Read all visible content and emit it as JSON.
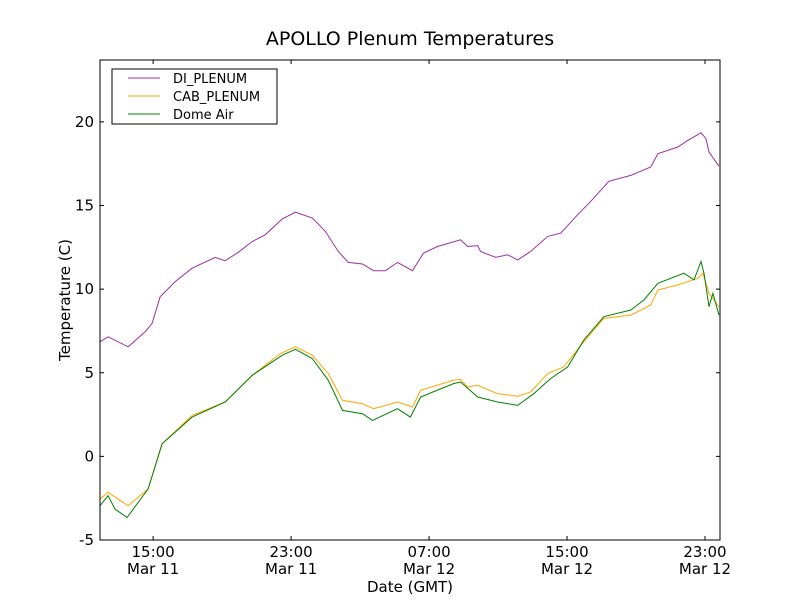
{
  "chart_data": {
    "type": "line",
    "title": "APOLLO Plenum Temperatures",
    "xlabel": "Date (GMT)",
    "ylabel": "Temperature (C)",
    "x_units": "hours since Mar 11 00:00 GMT",
    "xlim": [
      11.92,
      47.87
    ],
    "ylim": [
      -5,
      23.7
    ],
    "grid": false,
    "legend_position": "top-left",
    "x_ticks": [
      {
        "value": 15,
        "label_time": "15:00",
        "label_date": "Mar 11"
      },
      {
        "value": 23,
        "label_time": "23:00",
        "label_date": "Mar 11"
      },
      {
        "value": 31,
        "label_time": "07:00",
        "label_date": "Mar 12"
      },
      {
        "value": 39,
        "label_time": "15:00",
        "label_date": "Mar 12"
      },
      {
        "value": 47,
        "label_time": "23:00",
        "label_date": "Mar 12"
      }
    ],
    "y_ticks": [
      {
        "value": -5,
        "label": "-5"
      },
      {
        "value": 0,
        "label": "0"
      },
      {
        "value": 5,
        "label": "5"
      },
      {
        "value": 10,
        "label": "10"
      },
      {
        "value": 15,
        "label": "15"
      },
      {
        "value": 20,
        "label": "20"
      }
    ],
    "series": [
      {
        "name": "DI_PLENUM",
        "color": "#9b309b",
        "x": [
          11.92,
          12.39,
          13.55,
          14.54,
          14.94,
          15.41,
          16.28,
          17.26,
          18.6,
          19.18,
          19.94,
          20.75,
          21.5,
          22.49,
          23.25,
          24.23,
          24.99,
          25.74,
          26.32,
          27.14,
          27.78,
          28.47,
          29.17,
          30.04,
          30.68,
          31.49,
          32.83,
          33.23,
          33.82,
          33.99,
          34.86,
          35.56,
          36.14,
          36.89,
          37.88,
          38.64,
          39.62,
          40.38,
          41.42,
          42.7,
          43.86,
          44.27,
          45.43,
          46.01,
          46.77,
          47.06,
          47.23,
          47.81
        ],
        "y": [
          6.85,
          7.15,
          6.55,
          7.45,
          7.95,
          9.55,
          10.45,
          11.25,
          11.9,
          11.7,
          12.2,
          12.85,
          13.25,
          14.2,
          14.6,
          14.25,
          13.45,
          12.25,
          11.6,
          11.5,
          11.1,
          11.1,
          11.6,
          11.1,
          12.15,
          12.55,
          12.95,
          12.55,
          12.6,
          12.25,
          11.9,
          12.05,
          11.75,
          12.25,
          13.15,
          13.35,
          14.45,
          15.25,
          16.45,
          16.8,
          17.3,
          18.1,
          18.5,
          18.9,
          19.35,
          19.0,
          18.2,
          17.35
        ]
      },
      {
        "name": "CAB_PLENUM",
        "color": "#ffa500",
        "x": [
          11.92,
          12.39,
          13.55,
          14.71,
          15.52,
          17.26,
          19.18,
          20.75,
          22.38,
          23.25,
          24.23,
          25.16,
          25.98,
          27.14,
          27.78,
          29.17,
          30.04,
          30.51,
          32.42,
          32.83,
          33.23,
          33.82,
          34.98,
          36.14,
          36.89,
          37.88,
          38.81,
          39.97,
          41.13,
          42.7,
          43.86,
          44.27,
          45.43,
          46.59,
          46.88,
          47.23,
          47.81
        ],
        "y": [
          -2.55,
          -2.15,
          -2.95,
          -1.95,
          0.75,
          2.45,
          3.25,
          4.85,
          6.15,
          6.55,
          6.05,
          4.95,
          3.35,
          3.15,
          2.85,
          3.25,
          2.95,
          3.95,
          4.55,
          4.6,
          4.15,
          4.25,
          3.75,
          3.6,
          3.85,
          4.95,
          5.35,
          6.85,
          8.25,
          8.45,
          9.05,
          9.95,
          10.25,
          10.65,
          10.95,
          9.75,
          8.95
        ]
      },
      {
        "name": "Dome Air",
        "color": "#008000",
        "x": [
          11.92,
          12.39,
          12.79,
          13.49,
          14.71,
          15.52,
          17.26,
          19.18,
          20.75,
          22.49,
          23.25,
          24.23,
          25.16,
          25.98,
          27.14,
          27.72,
          29.17,
          29.92,
          30.51,
          32.42,
          32.83,
          33.82,
          34.98,
          36.14,
          37.07,
          38.05,
          39.04,
          39.97,
          41.13,
          42.7,
          43.46,
          44.27,
          45.78,
          46.36,
          46.77,
          46.94,
          47.23,
          47.46,
          47.81
        ],
        "y": [
          -2.95,
          -2.35,
          -3.15,
          -3.65,
          -1.95,
          0.75,
          2.35,
          3.25,
          4.85,
          6.05,
          6.4,
          5.85,
          4.55,
          2.75,
          2.55,
          2.15,
          2.85,
          2.35,
          3.55,
          4.35,
          4.45,
          3.55,
          3.25,
          3.05,
          3.75,
          4.65,
          5.35,
          6.95,
          8.35,
          8.75,
          9.35,
          10.35,
          10.95,
          10.55,
          11.65,
          10.95,
          8.95,
          9.75,
          8.45
        ]
      }
    ]
  }
}
